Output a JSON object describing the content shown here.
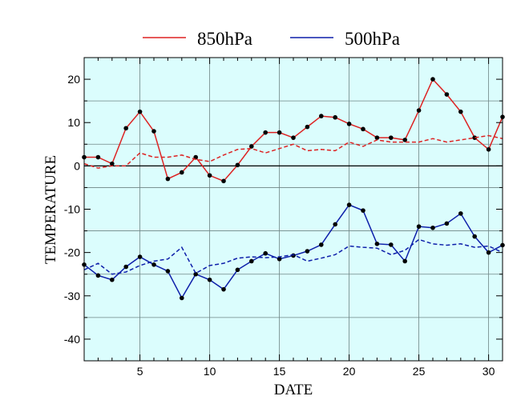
{
  "chart_data": {
    "type": "line",
    "xlabel": "DATE",
    "ylabel": "TEMPERATURE",
    "xlim": [
      1,
      31
    ],
    "ylim": [
      -45,
      25
    ],
    "xticks": [
      5,
      10,
      15,
      20,
      25,
      30
    ],
    "yticks": [
      20,
      10,
      0,
      -10,
      -20,
      -30,
      -40
    ],
    "grid": true,
    "legend_position": "top-center",
    "plot_background": "#dbfdfd",
    "x": [
      1,
      2,
      3,
      4,
      5,
      6,
      7,
      8,
      9,
      10,
      11,
      12,
      13,
      14,
      15,
      16,
      17,
      18,
      19,
      20,
      21,
      22,
      23,
      24,
      25,
      26,
      27,
      28,
      29,
      30,
      31
    ],
    "series": [
      {
        "name": "850hPa",
        "color": "#dd2222",
        "style": "solid",
        "markers": true,
        "values": [
          2.0,
          2.0,
          0.5,
          8.7,
          12.5,
          8.0,
          -3.0,
          -1.5,
          2.0,
          -2.2,
          -3.5,
          0.2,
          4.5,
          7.7,
          7.7,
          6.5,
          9.0,
          11.5,
          11.2,
          9.7,
          8.5,
          6.5,
          6.5,
          6.0,
          12.8,
          20.0,
          16.5,
          12.5,
          6.5,
          3.8,
          11.3
        ]
      },
      {
        "color": "#dd2222",
        "style": "dashed",
        "markers": false,
        "values": [
          0.5,
          -0.5,
          0.0,
          0.0,
          3.0,
          2.0,
          2.0,
          2.5,
          1.5,
          1.0,
          2.5,
          3.8,
          4.0,
          3.0,
          4.0,
          5.0,
          3.5,
          3.8,
          3.5,
          5.5,
          4.5,
          6.0,
          5.5,
          5.5,
          5.5,
          6.3,
          5.5,
          6.0,
          6.5,
          7.0,
          6.3
        ]
      },
      {
        "name": "500hPa",
        "color": "#0d1faa",
        "style": "solid",
        "markers": true,
        "values": [
          -22.8,
          -25.3,
          -26.3,
          -23.3,
          -21.0,
          -22.8,
          -24.3,
          -30.5,
          -25.0,
          -26.3,
          -28.5,
          -24.0,
          -22.0,
          -20.2,
          -21.5,
          -20.7,
          -19.7,
          -18.2,
          -13.5,
          -9.0,
          -10.3,
          -18.0,
          -18.2,
          -22.0,
          -14.0,
          -14.3,
          -13.3,
          -11.0,
          -16.3,
          -20.0,
          -18.3
        ]
      },
      {
        "color": "#0d1faa",
        "style": "dashed",
        "markers": false,
        "values": [
          -24.0,
          -22.5,
          -25.0,
          -24.5,
          -23.0,
          -22.0,
          -21.5,
          -18.8,
          -24.8,
          -23.0,
          -22.5,
          -21.3,
          -21.0,
          -21.2,
          -21.0,
          -20.5,
          -22.0,
          -21.3,
          -20.5,
          -18.5,
          -18.8,
          -19.0,
          -20.5,
          -19.5,
          -17.0,
          -18.0,
          -18.3,
          -18.0,
          -18.8,
          -18.5,
          -20.0
        ]
      }
    ]
  }
}
